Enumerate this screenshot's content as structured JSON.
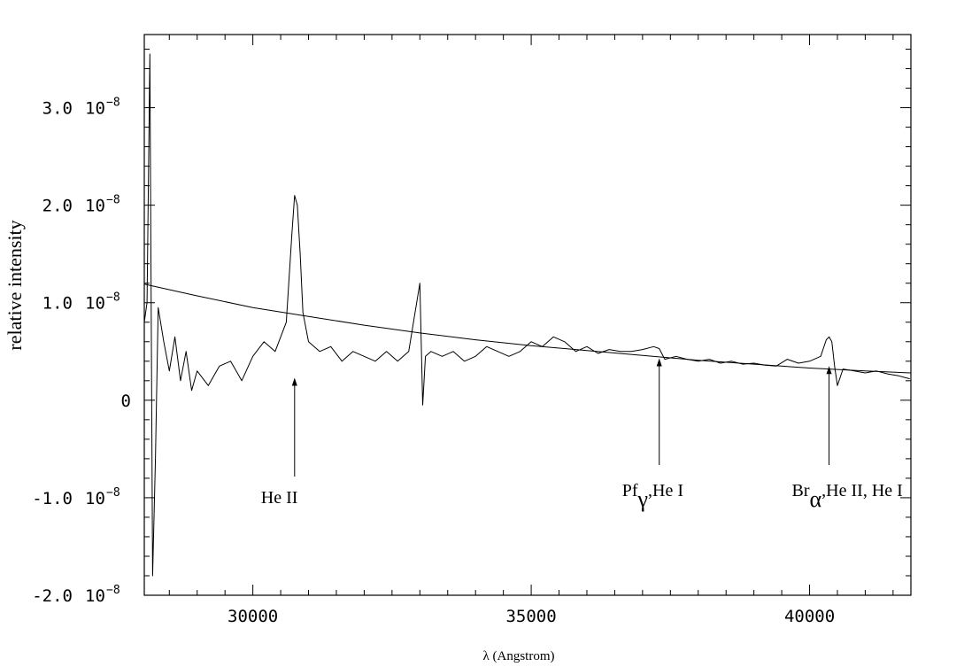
{
  "chart_data": {
    "type": "line",
    "title": "",
    "xlabel": "λ   (Angstrom)",
    "ylabel": "relative intensity",
    "xlim": [
      28050,
      41820
    ],
    "ylim": [
      -2e-08,
      3.75e-08
    ],
    "grid": false,
    "x_ticks": [
      {
        "value": 30000,
        "label": "30000"
      },
      {
        "value": 35000,
        "label": "35000"
      },
      {
        "value": 40000,
        "label": "40000"
      }
    ],
    "y_ticks": [
      {
        "value": 3e-08,
        "mantissa": "3.0",
        "base": "10",
        "exp": "−8"
      },
      {
        "value": 2e-08,
        "mantissa": "2.0",
        "base": "10",
        "exp": "−8"
      },
      {
        "value": 1e-08,
        "mantissa": "1.0",
        "base": "10",
        "exp": "−8"
      },
      {
        "value": 0,
        "mantissa": "0",
        "base": "",
        "exp": ""
      },
      {
        "value": -1e-08,
        "mantissa": "-1.0",
        "base": "10",
        "exp": "−8"
      },
      {
        "value": -2e-08,
        "mantissa": "-2.0",
        "base": "10",
        "exp": "−8"
      }
    ],
    "series": [
      {
        "x": [
          28050,
          28100,
          28150,
          28200,
          28250,
          28300,
          28400,
          28500,
          28600,
          28700,
          28800,
          28900,
          29000,
          29200,
          29400,
          29600,
          29800,
          30000,
          30200,
          30400,
          30600,
          30700,
          30750,
          30800,
          30850,
          30900,
          31000,
          31200,
          31400,
          31600,
          31800,
          32000,
          32200,
          32400,
          32600,
          32800,
          33000,
          33050,
          33100,
          33200,
          33400,
          33600,
          33800,
          34000,
          34200,
          34400,
          34600,
          34800,
          35000,
          35200,
          35400,
          35600,
          35800,
          36000,
          36200,
          36400,
          36600,
          36800,
          37000,
          37200,
          37300,
          37400,
          37600,
          37800,
          38000,
          38200,
          38400,
          38600,
          38800,
          39000,
          39200,
          39400,
          39600,
          39800,
          40000,
          40200,
          40300,
          40350,
          40400,
          40450,
          40500,
          40600,
          40800,
          41000,
          41200,
          41400,
          41600,
          41800
        ],
        "y": [
          8e-09,
          1e-08,
          3.55e-08,
          -1.8e-08,
          -6e-09,
          9.5e-09,
          6e-09,
          3e-09,
          6.5e-09,
          2e-09,
          5e-09,
          1e-09,
          3e-09,
          1.5e-09,
          3.5e-09,
          4e-09,
          2e-09,
          4.5e-09,
          6e-09,
          5e-09,
          8e-09,
          1.7e-08,
          2.1e-08,
          2e-08,
          1.5e-08,
          9e-09,
          6e-09,
          5e-09,
          5.5e-09,
          4e-09,
          5e-09,
          4.5e-09,
          4e-09,
          5e-09,
          4e-09,
          5e-09,
          1.2e-08,
          -5e-10,
          4.5e-09,
          5e-09,
          4.5e-09,
          5e-09,
          4e-09,
          4.5e-09,
          5.5e-09,
          5e-09,
          4.5e-09,
          5e-09,
          6e-09,
          5.5e-09,
          6.5e-09,
          6e-09,
          5e-09,
          5.5e-09,
          4.8e-09,
          5.2e-09,
          5e-09,
          5e-09,
          5.2e-09,
          5.5e-09,
          5.3e-09,
          4.2e-09,
          4.5e-09,
          4.2e-09,
          4e-09,
          4.2e-09,
          3.8e-09,
          4e-09,
          3.7e-09,
          3.8e-09,
          3.6e-09,
          3.5e-09,
          4.2e-09,
          3.8e-09,
          4e-09,
          4.5e-09,
          6.2e-09,
          6.5e-09,
          6e-09,
          3.5e-09,
          1.5e-09,
          3.2e-09,
          3e-09,
          2.8e-09,
          3e-09,
          2.7e-09,
          2.5e-09,
          2.2e-09
        ]
      },
      {
        "x": [
          28050,
          29000,
          30000,
          31000,
          32000,
          33000,
          34000,
          35000,
          36000,
          37000,
          38000,
          39000,
          40000,
          41000,
          41820
        ],
        "y": [
          1.19e-08,
          1.07e-08,
          9.5e-09,
          8.6e-09,
          7.7e-09,
          6.9e-09,
          6.2e-09,
          5.6e-09,
          5.1e-09,
          4.6e-09,
          4.1e-09,
          3.7e-09,
          3.3e-09,
          3e-09,
          2.8e-09
        ]
      }
    ],
    "annotations": [
      {
        "x": 30750,
        "y": 2.3e-09,
        "text_main": "He II",
        "text_sub": "",
        "text_rest": ""
      },
      {
        "x": 37300,
        "y": 4.3e-09,
        "text_main": "Pf",
        "text_sub": "γ",
        "text_rest": ",He I"
      },
      {
        "x": 40350,
        "y": 3.5e-09,
        "text_main": "Br",
        "text_sub": "α",
        "text_rest": ",He II, He I"
      }
    ]
  }
}
